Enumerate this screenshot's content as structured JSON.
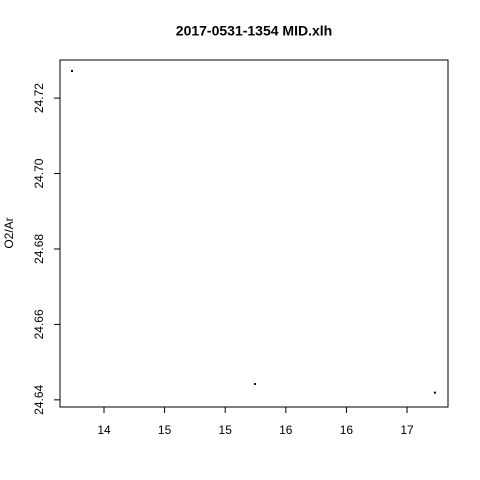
{
  "chart_data": {
    "type": "scatter",
    "title": "2017-0531-1354 MID.xlh",
    "y_label": "O2/Ar",
    "x": [
      13.736,
      15.246,
      16.73
    ],
    "values": [
      24.7272,
      24.6442,
      24.6419
    ],
    "color": "#000000",
    "xlim": [
      13.637,
      16.838
    ],
    "ylim": [
      24.6381,
      24.7301
    ],
    "xticks": [
      14,
      {
        "value": 14.5,
        "label": "15"
      },
      15,
      {
        "value": 15.5,
        "label": "16"
      },
      16,
      {
        "value": 16.5,
        "label": "17"
      }
    ],
    "yticks": [
      24.64,
      24.66,
      24.68,
      {
        "value": 24.7,
        "label": "24.70"
      },
      24.72
    ],
    "grid": false
  }
}
